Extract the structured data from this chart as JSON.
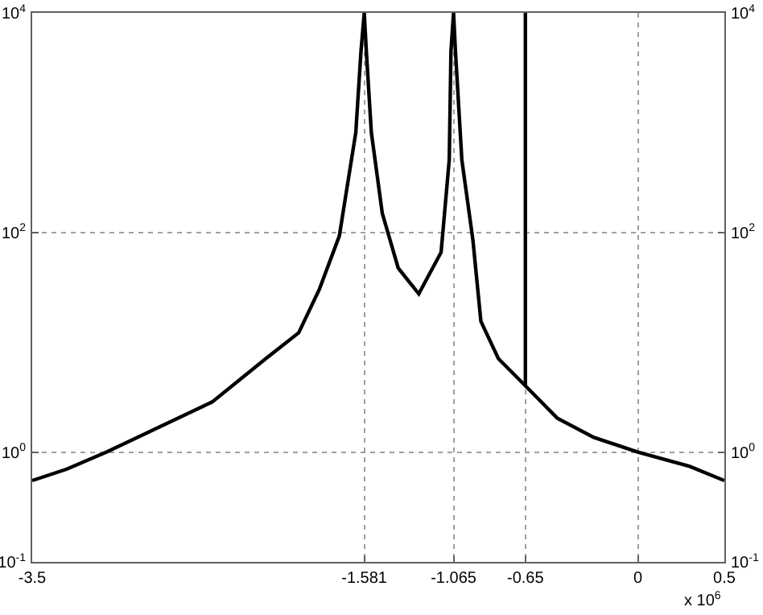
{
  "chart_data": {
    "type": "line",
    "log": "y",
    "grid": true,
    "marker": "none",
    "line_style": "solid",
    "xlim": [
      -3.5,
      0.5
    ],
    "xticks": [
      -3.5,
      -1.581,
      -1.065,
      -0.65,
      0,
      0.5
    ],
    "ylim": [
      0.1,
      10000
    ],
    "yticks": [
      {
        "value": 0.1,
        "label": "10$^{-1}$"
      },
      {
        "value": 1,
        "label": "10$^{0}$"
      },
      {
        "value": 100,
        "label": "10$^{2}$"
      },
      {
        "value": 10000,
        "label": "10$^{4}$"
      }
    ],
    "annotations": [
      "x 10$^{6}$"
    ],
    "series": [
      {
        "color": "#000000",
        "x": [
          -3.5,
          -3.3,
          -3.07,
          -2.46,
          -2.15,
          -1.96,
          -1.84,
          -1.725,
          -1.63,
          -1.6,
          -1.581,
          -1.569,
          -1.54,
          -1.477,
          -1.385,
          -1.266,
          -1.137,
          -1.09,
          -1.08,
          -1.065,
          -1.054,
          -1.017,
          -0.953,
          -0.907,
          -0.806,
          -0.659,
          -0.466,
          -0.254,
          0,
          0.3,
          0.5
        ],
        "values": [
          0.55,
          0.7,
          1.0,
          2.86,
          7.1,
          12.2,
          30.5,
          93,
          815,
          4450,
          10000,
          4450,
          815,
          150,
          47.5,
          27.6,
          66,
          458,
          4450,
          10000,
          4450,
          458,
          85,
          15.5,
          7.1,
          4.15,
          2.04,
          1.36,
          1.0,
          0.74,
          0.55
        ]
      },
      {
        "color": "#000000",
        "x": [
          -0.65,
          -0.65
        ],
        "values": [
          4.1,
          10000
        ]
      }
    ]
  }
}
